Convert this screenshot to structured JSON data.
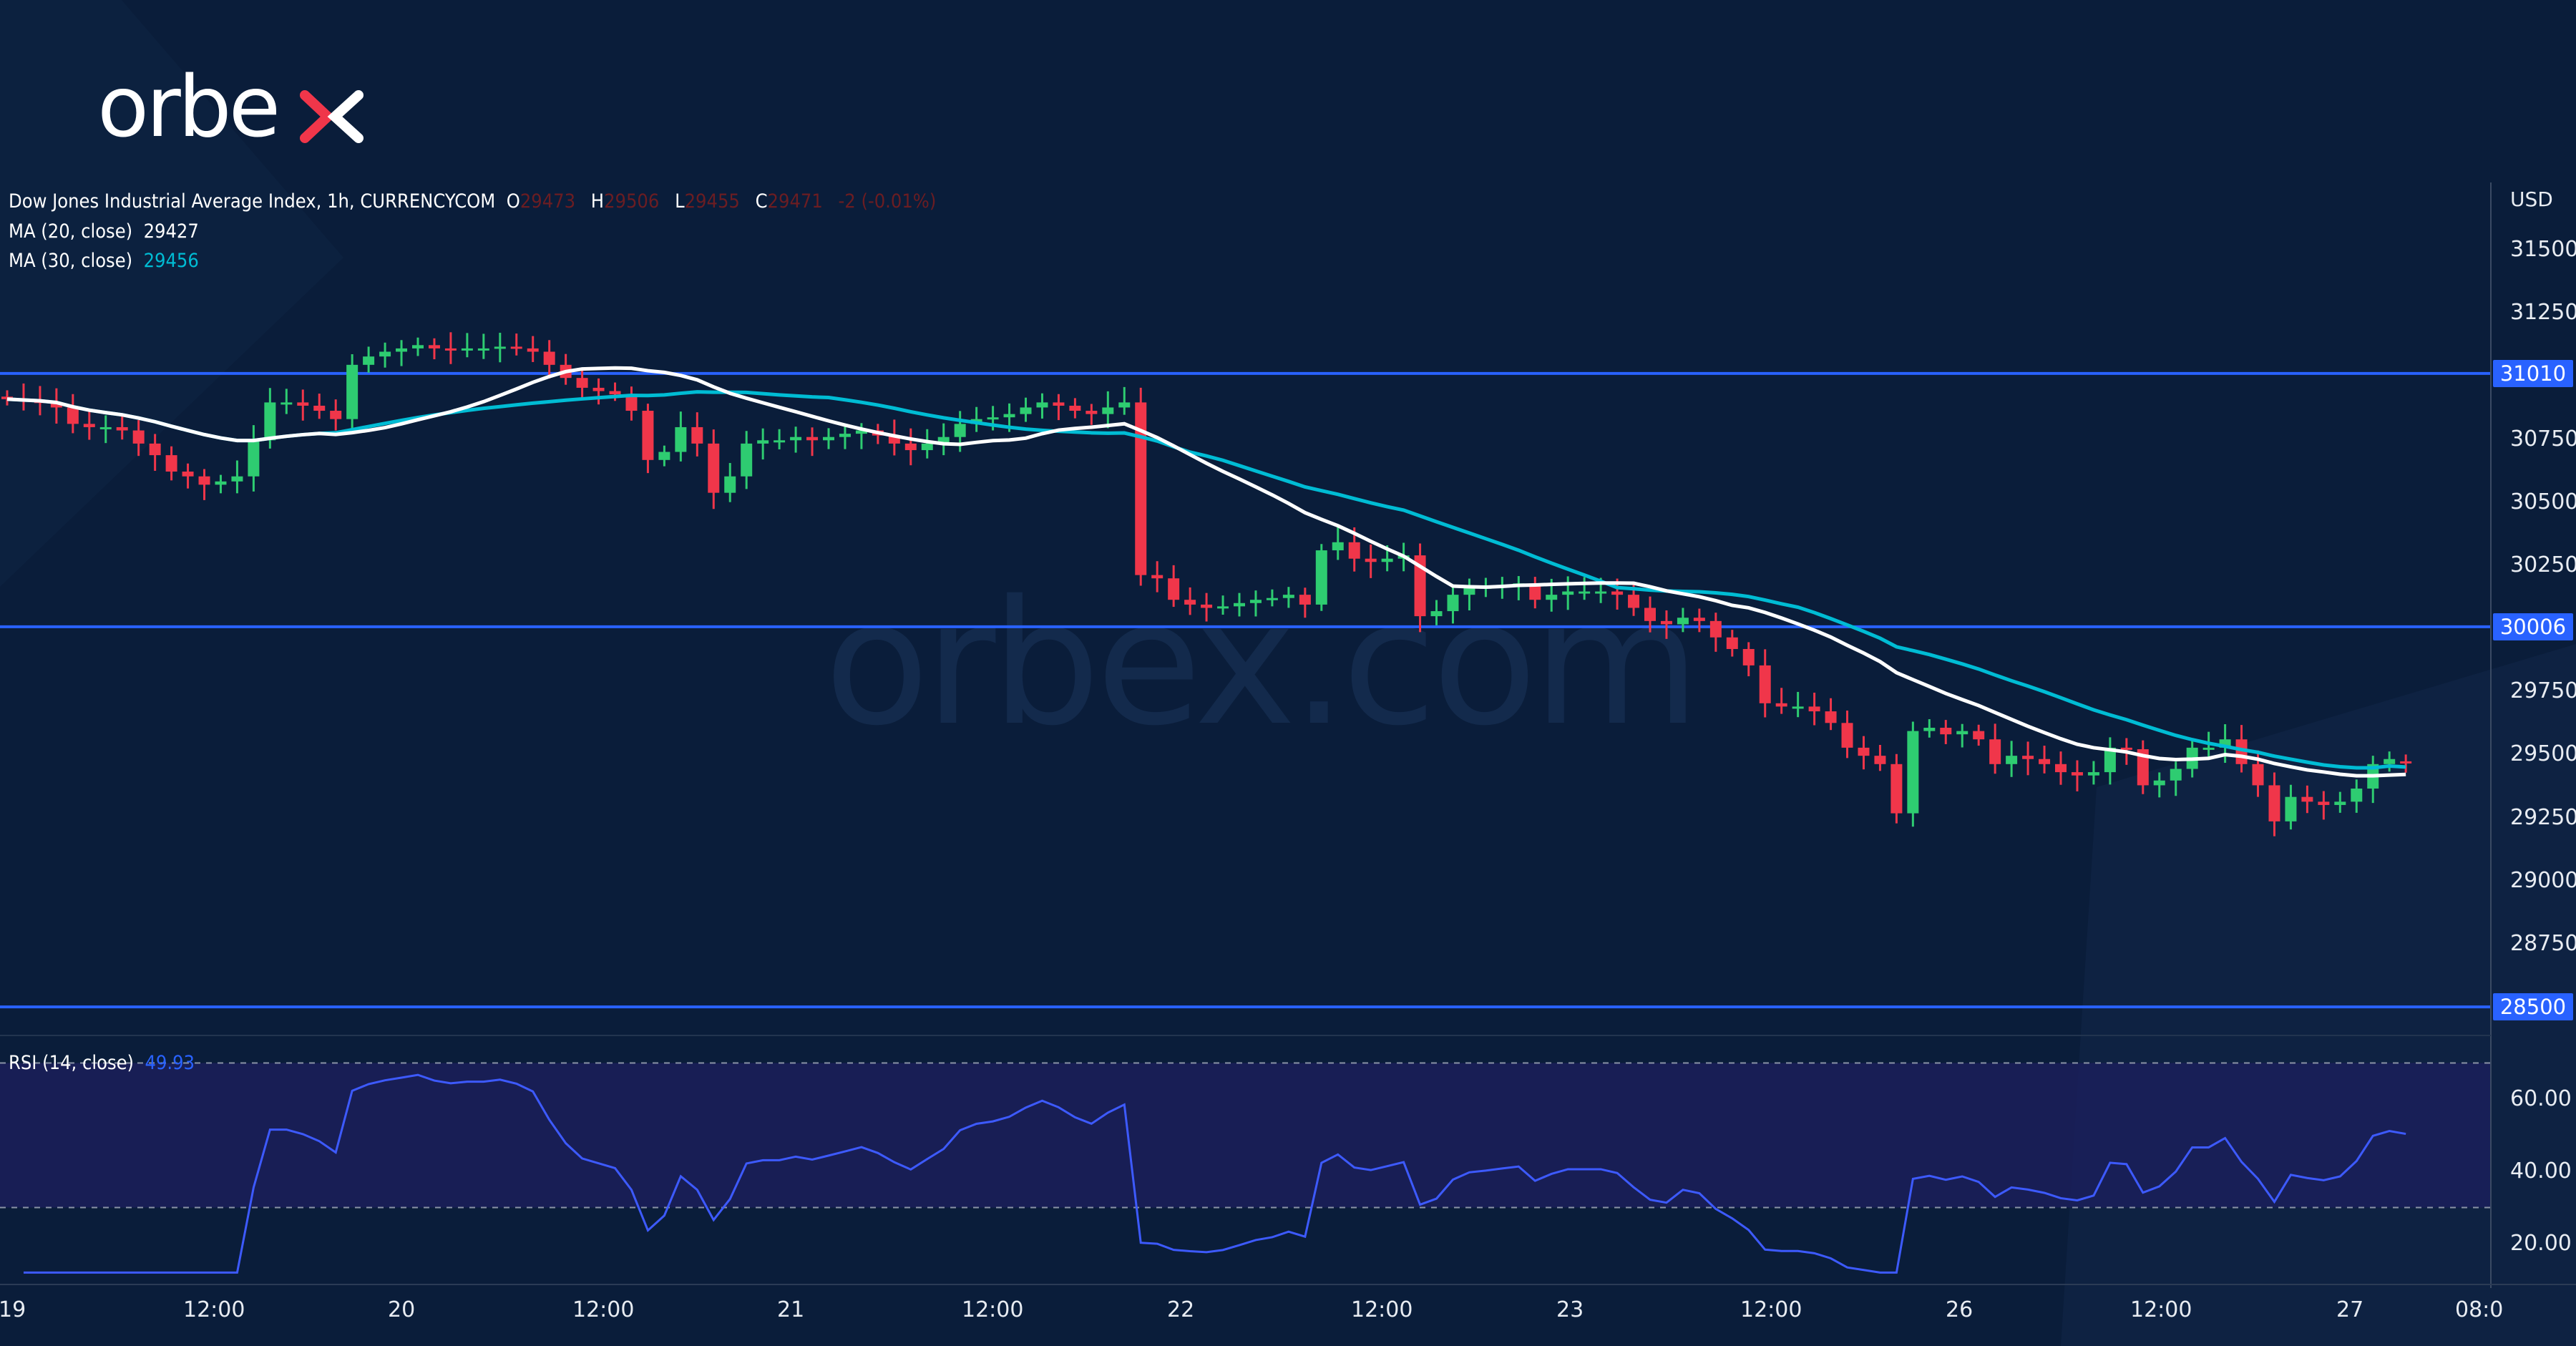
{
  "logo": {
    "text": "orbex",
    "watermark": "orbex.com"
  },
  "legend": {
    "symbol": "Dow Jones Industrial Average Index, 1h, CURRENCYCOM",
    "o_label": "O",
    "o": "29473",
    "h_label": "H",
    "h": "29506",
    "l_label": "L",
    "l": "29455",
    "c_label": "C",
    "c": "29471",
    "change": "-2 (-0.01%)",
    "ma20_label": "MA (20, close)",
    "ma20": "29427",
    "ma30_label": "MA (30, close)",
    "ma30": "29456",
    "rsi_label": "RSI (14, close)",
    "rsi": "49.93"
  },
  "price_axis": {
    "currency": "USD",
    "ticks": [
      "31500",
      "31250",
      "30750",
      "30500",
      "30250",
      "29750",
      "29500",
      "29250",
      "29000",
      "28750"
    ],
    "levels": [
      "31010",
      "30006",
      "28500"
    ]
  },
  "rsi_axis": {
    "ticks": [
      "60.00",
      "40.00",
      "20.00"
    ]
  },
  "time_axis": {
    "ticks": [
      "19",
      "12:00",
      "20",
      "12:00",
      "21",
      "12:00",
      "22",
      "12:00",
      "23",
      "12:00",
      "26",
      "12:00",
      "27",
      "08:0"
    ]
  },
  "colors": {
    "background": "#0a1d3a",
    "up": "#2ecc71",
    "down": "#f0364a",
    "ma20": "#ffffff",
    "ma30": "#00bcd4",
    "level": "#2962ff",
    "rsi": "#3d5afe",
    "rsi_band": "#1c1f5c"
  },
  "chart_data": {
    "type": "candlestick",
    "interval": "1h",
    "price_range": [
      28400,
      31650
    ],
    "levels": [
      31010,
      30006,
      28500
    ],
    "rsi_period": 14,
    "rsi_range": [
      10,
      75
    ],
    "rsi_bands": [
      30,
      70
    ],
    "ma_periods": [
      20,
      30
    ],
    "closes": [
      30908,
      30901,
      30895,
      30875,
      30810,
      30797,
      30797,
      30784,
      30732,
      30686,
      30621,
      30602,
      30569,
      30582,
      30602,
      30745,
      30895,
      30895,
      30882,
      30862,
      30829,
      31044,
      31077,
      31096,
      31109,
      31122,
      31109,
      31103,
      31109,
      31109,
      31116,
      31109,
      31096,
      31044,
      30992,
      30953,
      30940,
      30927,
      30862,
      30667,
      30699,
      30797,
      30732,
      30537,
      30602,
      30732,
      30745,
      30745,
      30758,
      30745,
      30758,
      30771,
      30784,
      30764,
      30732,
      30706,
      30732,
      30758,
      30810,
      30829,
      30836,
      30849,
      30875,
      30895,
      30882,
      30862,
      30849,
      30875,
      30895,
      30211,
      30198,
      30113,
      30094,
      30081,
      30087,
      30100,
      30113,
      30120,
      30133,
      30094,
      30309,
      30341,
      30276,
      30263,
      30276,
      30289,
      30048,
      30068,
      30133,
      30159,
      30165,
      30172,
      30178,
      30113,
      30133,
      30146,
      30146,
      30146,
      30133,
      30081,
      30029,
      30016,
      30042,
      30029,
      29964,
      29918,
      29853,
      29703,
      29690,
      29690,
      29671,
      29625,
      29527,
      29495,
      29462,
      29267,
      29593,
      29606,
      29580,
      29593,
      29560,
      29462,
      29495,
      29482,
      29462,
      29430,
      29417,
      29430,
      29527,
      29521,
      29378,
      29397,
      29443,
      29527,
      29527,
      29560,
      29462,
      29378,
      29235,
      29332,
      29313,
      29300,
      29313,
      29365,
      29462,
      29482,
      29471
    ]
  }
}
